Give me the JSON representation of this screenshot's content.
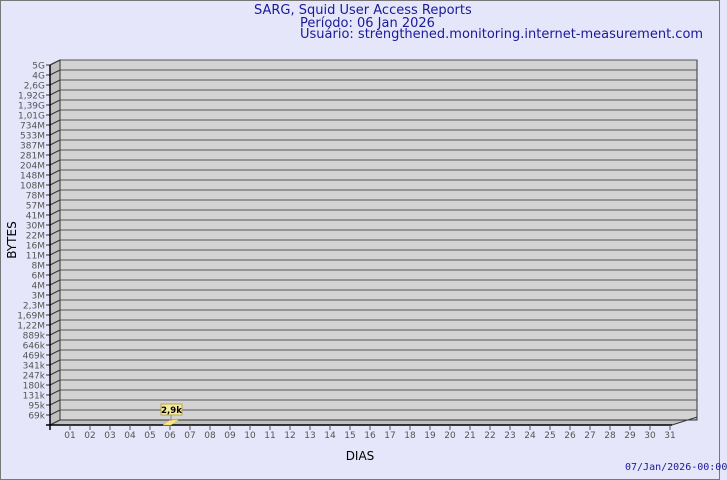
{
  "chart_data": {
    "type": "bar",
    "title": "SARG, Squid User Access Reports",
    "subtitle_period": "Período: 06 Jan 2026",
    "subtitle_user": "Usuário: strengthened.monitoring.internet-measurement.com",
    "xlabel": "DIAS",
    "ylabel": "BYTES",
    "y_scale": "log",
    "y_tick_labels": [
      "5G",
      "4G",
      "2,6G",
      "1,92G",
      "1,39G",
      "1,01G",
      "734M",
      "533M",
      "387M",
      "281M",
      "204M",
      "148M",
      "108M",
      "78M",
      "57M",
      "41M",
      "30M",
      "22M",
      "16M",
      "11M",
      "8M",
      "6M",
      "4M",
      "3M",
      "2,3M",
      "1,69M",
      "1,22M",
      "889k",
      "646k",
      "469k",
      "341k",
      "247k",
      "180k",
      "131k",
      "95k",
      "69k"
    ],
    "categories": [
      "01",
      "02",
      "03",
      "04",
      "05",
      "06",
      "07",
      "08",
      "09",
      "10",
      "11",
      "12",
      "13",
      "14",
      "15",
      "16",
      "17",
      "18",
      "19",
      "20",
      "21",
      "22",
      "23",
      "24",
      "25",
      "26",
      "27",
      "28",
      "29",
      "30",
      "31"
    ],
    "bars": [
      {
        "category": "06",
        "value": 2900,
        "label": "2,9k"
      }
    ],
    "grid": true,
    "colors": {
      "plot_bg": "#d3d3d3",
      "bar": "#ffe680",
      "label_bg": "#f5eba0",
      "text": "#1a1a99",
      "background": "#e6e6fa"
    }
  },
  "footer": {
    "timestamp": "07/Jan/2026-00:00"
  }
}
